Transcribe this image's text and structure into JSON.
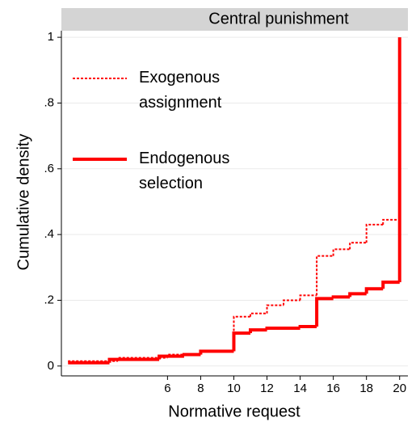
{
  "chart_data": {
    "type": "step",
    "title": "Central punishment",
    "x_label": "Normative request",
    "y_label": "Cumulative density",
    "xlim": [
      -0.4,
      20.5
    ],
    "ylim": [
      -0.03,
      1.02
    ],
    "xticks": [
      6,
      8,
      10,
      12,
      14,
      16,
      18,
      20
    ],
    "yticks": [
      0,
      {
        "value": 0.2,
        "label": ".2"
      },
      {
        "value": 0.4,
        "label": ".4"
      },
      {
        "value": 0.6,
        "label": ".6"
      },
      {
        "value": 0.8,
        "label": ".8"
      },
      1
    ],
    "grid": true,
    "legend_position": "upper left",
    "series": [
      {
        "name": "Exogenous assignment",
        "color": "#ff0000",
        "style": "dotted",
        "x": [
          0,
          3,
          6,
          8,
          10,
          11,
          12,
          13,
          14,
          15,
          16,
          17,
          18,
          19,
          20
        ],
        "values": [
          0.015,
          0.025,
          0.035,
          0.045,
          0.15,
          0.16,
          0.185,
          0.2,
          0.215,
          0.335,
          0.355,
          0.375,
          0.43,
          0.445,
          0.445
        ]
      },
      {
        "name": "Endogenous selection",
        "color": "#ff0000",
        "style": "solid",
        "x": [
          0,
          2.5,
          5.5,
          7,
          8,
          10,
          11,
          12,
          14,
          15,
          16,
          17,
          18,
          19,
          20
        ],
        "values": [
          0.01,
          0.02,
          0.03,
          0.035,
          0.045,
          0.1,
          0.11,
          0.115,
          0.12,
          0.205,
          0.21,
          0.22,
          0.235,
          0.255,
          1.0
        ]
      }
    ]
  }
}
